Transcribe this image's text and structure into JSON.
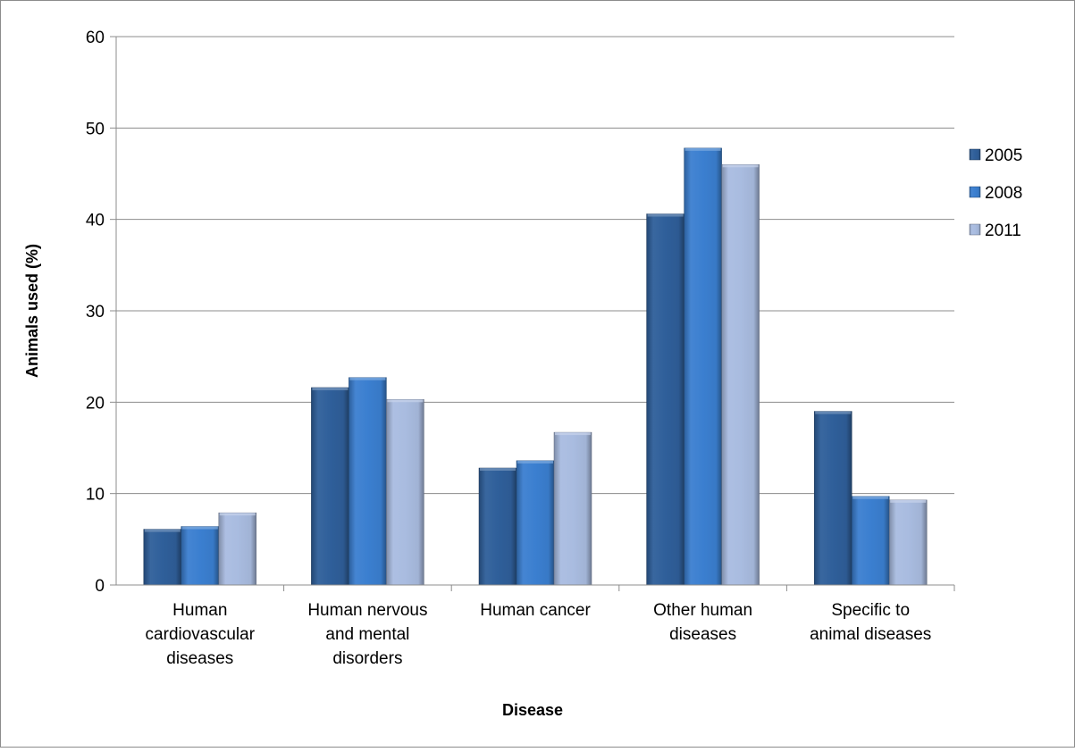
{
  "chart_data": {
    "type": "bar",
    "title": "",
    "xlabel": "Disease",
    "ylabel": "Animals used (%)",
    "ylim": [
      0,
      60
    ],
    "yticks": [
      0,
      10,
      20,
      30,
      40,
      50,
      60
    ],
    "grid": true,
    "legend_position": "right",
    "categories": [
      [
        "Human",
        "cardiovascular",
        "diseases"
      ],
      [
        "Human nervous",
        "and mental",
        "disorders"
      ],
      [
        "Human cancer"
      ],
      [
        "Other human",
        "diseases"
      ],
      [
        "Specific to",
        "animal diseases"
      ]
    ],
    "series": [
      {
        "name": "2005",
        "color": "#2f5f9a",
        "values": [
          6.1,
          21.6,
          12.8,
          40.6,
          19.0
        ]
      },
      {
        "name": "2008",
        "color": "#3b7fd0",
        "values": [
          6.4,
          22.7,
          13.6,
          47.8,
          9.7
        ]
      },
      {
        "name": "2011",
        "color": "#a9bce0",
        "values": [
          7.9,
          20.3,
          16.7,
          46.0,
          9.3
        ]
      }
    ]
  }
}
